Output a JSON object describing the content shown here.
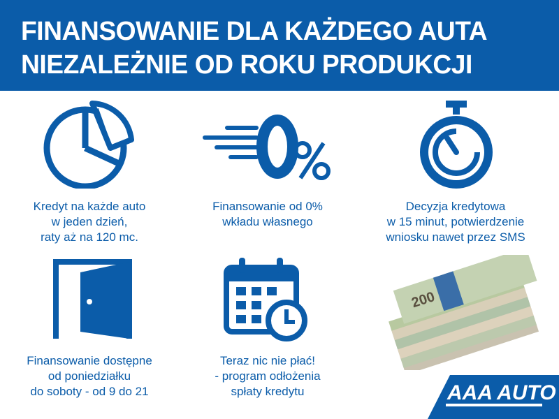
{
  "header": {
    "line1": "FINANSOWANIE DLA KAŻDEGO AUTA",
    "line2": "NIEZALEŻNIE OD ROKU PRODUKCJI"
  },
  "features": [
    {
      "icon": "pie-chart-icon",
      "lines": [
        "Kredyt na każde auto",
        "w jeden dzień,",
        "raty aż na 120 mc."
      ]
    },
    {
      "icon": "zero-percent-icon",
      "lines": [
        "Finansowanie od 0%",
        "wkładu własnego"
      ]
    },
    {
      "icon": "stopwatch-icon",
      "lines": [
        "Decyzja kredytowa",
        "w 15 minut, potwierdzenie",
        "wniosku nawet przez SMS"
      ]
    },
    {
      "icon": "door-icon",
      "lines": [
        "Finansowanie dostępne",
        "od poniedziałku",
        "do soboty - od 9 do 21"
      ]
    },
    {
      "icon": "calendar-clock-icon",
      "lines": [
        "Teraz nic nie płać!",
        "- program odłożenia",
        "spłaty kredytu"
      ]
    }
  ],
  "banknote_label": "200",
  "logo": "AAA AUTO",
  "colors": {
    "brand": "#0b5ca9"
  }
}
